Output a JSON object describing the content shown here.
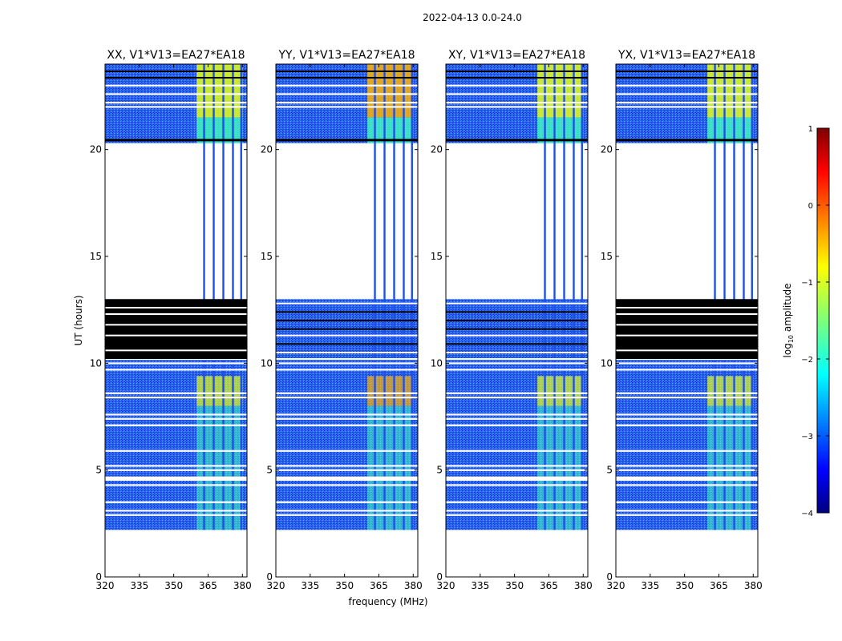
{
  "figure": {
    "suptitle": "2022-04-13 0.0-24.0",
    "xlabel": "frequency (MHz)",
    "ylabel": "UT (hours)"
  },
  "chart_data": {
    "type": "heatmap",
    "title": "2022-04-13 0.0-24.0",
    "xlabel": "frequency (MHz)",
    "ylabel": "UT (hours)",
    "xlim": [
      320,
      382
    ],
    "ylim": [
      0,
      24
    ],
    "xticks": [
      320,
      335,
      350,
      365,
      380
    ],
    "yticks": [
      0,
      5,
      10,
      15,
      20
    ],
    "data_extent_hours": [
      2.2,
      24.0
    ],
    "no_data_gap_hours": [
      13.0,
      20.3
    ],
    "bright_band_mhz": [
      360,
      380
    ],
    "panels": [
      {
        "title": "XX, V1*V13=EA27*EA18",
        "flagged_block_hours": [
          10.2,
          13.0
        ],
        "band_peak_log_amp": -1.0
      },
      {
        "title": "YY, V1*V13=EA27*EA18",
        "flagged_block_hours": [],
        "band_peak_log_amp": -0.5
      },
      {
        "title": "XY, V1*V13=EA27*EA18",
        "flagged_block_hours": [],
        "band_peak_log_amp": -1.0
      },
      {
        "title": "YX, V1*V13=EA27*EA18",
        "flagged_block_hours": [
          10.2,
          13.0
        ],
        "band_peak_log_amp": -1.0
      }
    ],
    "colorbar": {
      "label": "log10 amplitude",
      "label_base": "log",
      "label_sub": "10",
      "label_rest": " amplitude",
      "min": -4,
      "max": 1,
      "ticks": [
        1,
        0,
        -1,
        -2,
        -3,
        -4
      ],
      "tick_labels": [
        "1",
        "0",
        "−1",
        "−2",
        "−3",
        "−4"
      ],
      "colormap": "jet"
    }
  }
}
